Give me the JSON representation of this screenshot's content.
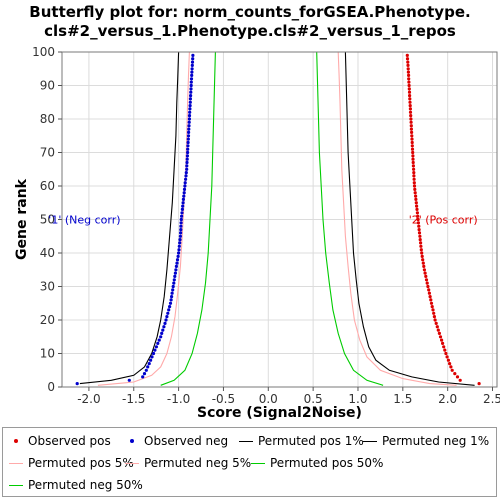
{
  "chart_data": {
    "type": "line",
    "title_lines": [
      "Butterfly plot for: norm_counts_forGSEA.Phenotype.",
      "cls#2_versus_1.Phenotype.cls#2_versus_1_repos"
    ],
    "xlabel": "Score (Signal2Noise)",
    "ylabel": "Gene rank",
    "xlim": [
      -2.3,
      2.55
    ],
    "ylim": [
      0,
      100
    ],
    "x_ticks": [
      -2.0,
      -1.5,
      -1.0,
      -0.5,
      0.0,
      0.5,
      1.0,
      1.5,
      2.0,
      2.5
    ],
    "x_tick_labels": [
      "-2.0",
      "-1.5",
      "-1.0",
      "-0.5",
      "0.0",
      "0.5",
      "1.0",
      "1.5",
      "2.0",
      "2.5"
    ],
    "y_ticks": [
      0,
      10,
      20,
      30,
      40,
      50,
      60,
      70,
      80,
      90,
      100
    ],
    "y_tick_labels": [
      "0",
      "10",
      "20",
      "30",
      "40",
      "50",
      "60",
      "70",
      "80",
      "90",
      "100"
    ],
    "grid": true,
    "legend_position": "bottom",
    "annotations": [
      {
        "text": "'1' (Neg corr)",
        "x": -2.05,
        "y": 50,
        "color": "#0000cc"
      },
      {
        "text": "'2' (Pos corr)",
        "x": 1.95,
        "y": 50,
        "color": "#dd0000"
      }
    ],
    "series": [
      {
        "name": "Observed pos",
        "style": "dots",
        "color": "#dd0000",
        "points": [
          [
            2.35,
            1
          ],
          [
            2.14,
            2
          ],
          [
            2.05,
            5
          ],
          [
            1.98,
            10
          ],
          [
            1.92,
            15
          ],
          [
            1.86,
            20
          ],
          [
            1.82,
            25
          ],
          [
            1.78,
            30
          ],
          [
            1.74,
            35
          ],
          [
            1.71,
            40
          ],
          [
            1.69,
            45
          ],
          [
            1.67,
            50
          ],
          [
            1.65,
            55
          ],
          [
            1.63,
            60
          ],
          [
            1.62,
            65
          ],
          [
            1.61,
            70
          ],
          [
            1.6,
            75
          ],
          [
            1.59,
            80
          ],
          [
            1.58,
            85
          ],
          [
            1.57,
            90
          ],
          [
            1.56,
            95
          ],
          [
            1.55,
            99
          ]
        ]
      },
      {
        "name": "Observed neg",
        "style": "dots",
        "color": "#0000cc",
        "points": [
          [
            -2.13,
            1
          ],
          [
            -1.55,
            2
          ],
          [
            -1.4,
            3
          ],
          [
            -1.36,
            5
          ],
          [
            -1.28,
            10
          ],
          [
            -1.2,
            15
          ],
          [
            -1.14,
            20
          ],
          [
            -1.09,
            25
          ],
          [
            -1.06,
            30
          ],
          [
            -1.03,
            35
          ],
          [
            -1.0,
            40
          ],
          [
            -0.98,
            45
          ],
          [
            -0.97,
            50
          ],
          [
            -0.95,
            55
          ],
          [
            -0.93,
            60
          ],
          [
            -0.91,
            65
          ],
          [
            -0.9,
            70
          ],
          [
            -0.89,
            75
          ],
          [
            -0.88,
            80
          ],
          [
            -0.87,
            85
          ],
          [
            -0.86,
            90
          ],
          [
            -0.85,
            95
          ],
          [
            -0.84,
            99
          ]
        ]
      },
      {
        "name": "Permuted pos 1%",
        "style": "line",
        "color": "#000000",
        "points": [
          [
            2.3,
            0.5
          ],
          [
            1.9,
            1.5
          ],
          [
            1.6,
            3
          ],
          [
            1.35,
            5
          ],
          [
            1.2,
            8
          ],
          [
            1.12,
            12
          ],
          [
            1.06,
            18
          ],
          [
            1.01,
            25
          ],
          [
            0.98,
            32
          ],
          [
            0.95,
            40
          ],
          [
            0.93,
            50
          ],
          [
            0.91,
            60
          ],
          [
            0.89,
            70
          ],
          [
            0.88,
            80
          ],
          [
            0.87,
            90
          ],
          [
            0.86,
            100
          ]
        ]
      },
      {
        "name": "Permuted neg 1%",
        "style": "line",
        "color": "#000000",
        "points": [
          [
            -2.1,
            1
          ],
          [
            -1.75,
            2
          ],
          [
            -1.5,
            3.5
          ],
          [
            -1.38,
            6
          ],
          [
            -1.3,
            10
          ],
          [
            -1.24,
            15
          ],
          [
            -1.2,
            20
          ],
          [
            -1.16,
            27
          ],
          [
            -1.13,
            35
          ],
          [
            -1.1,
            45
          ],
          [
            -1.07,
            55
          ],
          [
            -1.05,
            65
          ],
          [
            -1.03,
            75
          ],
          [
            -1.02,
            85
          ],
          [
            -1.01,
            92
          ],
          [
            -1.0,
            100
          ]
        ]
      },
      {
        "name": "Permuted pos 5%",
        "style": "line",
        "color": "#ffaaaa",
        "points": [
          [
            2.1,
            0.5
          ],
          [
            1.8,
            1
          ],
          [
            1.5,
            2.5
          ],
          [
            1.25,
            5
          ],
          [
            1.1,
            9
          ],
          [
            1.02,
            14
          ],
          [
            0.96,
            20
          ],
          [
            0.92,
            28
          ],
          [
            0.89,
            36
          ],
          [
            0.86,
            45
          ],
          [
            0.84,
            55
          ],
          [
            0.82,
            65
          ],
          [
            0.81,
            75
          ],
          [
            0.8,
            85
          ],
          [
            0.79,
            93
          ],
          [
            0.78,
            100
          ]
        ]
      },
      {
        "name": "Permuted neg 5%",
        "style": "line",
        "color": "#ffaaaa",
        "points": [
          [
            -1.9,
            0.5
          ],
          [
            -1.5,
            1.5
          ],
          [
            -1.3,
            3.5
          ],
          [
            -1.2,
            6
          ],
          [
            -1.13,
            10
          ],
          [
            -1.08,
            15
          ],
          [
            -1.04,
            21
          ],
          [
            -1.01,
            28
          ],
          [
            -0.98,
            36
          ],
          [
            -0.96,
            45
          ],
          [
            -0.94,
            55
          ],
          [
            -0.92,
            65
          ],
          [
            -0.91,
            75
          ],
          [
            -0.9,
            85
          ],
          [
            -0.89,
            93
          ],
          [
            -0.88,
            100
          ]
        ]
      },
      {
        "name": "Permuted pos 50%",
        "style": "line",
        "color": "#00cc00",
        "points": [
          [
            1.28,
            0.5
          ],
          [
            1.1,
            2
          ],
          [
            0.95,
            5
          ],
          [
            0.85,
            10
          ],
          [
            0.78,
            16
          ],
          [
            0.72,
            23
          ],
          [
            0.68,
            31
          ],
          [
            0.64,
            40
          ],
          [
            0.61,
            50
          ],
          [
            0.59,
            60
          ],
          [
            0.57,
            70
          ],
          [
            0.56,
            80
          ],
          [
            0.55,
            90
          ],
          [
            0.54,
            100
          ]
        ]
      },
      {
        "name": "Permuted neg 50%",
        "style": "line",
        "color": "#00cc00",
        "points": [
          [
            -1.2,
            0.5
          ],
          [
            -1.05,
            2
          ],
          [
            -0.93,
            5
          ],
          [
            -0.85,
            10
          ],
          [
            -0.79,
            16
          ],
          [
            -0.74,
            23
          ],
          [
            -0.7,
            31
          ],
          [
            -0.67,
            40
          ],
          [
            -0.65,
            50
          ],
          [
            -0.63,
            60
          ],
          [
            -0.62,
            70
          ],
          [
            -0.61,
            80
          ],
          [
            -0.6,
            90
          ],
          [
            -0.59,
            100
          ]
        ]
      }
    ]
  }
}
